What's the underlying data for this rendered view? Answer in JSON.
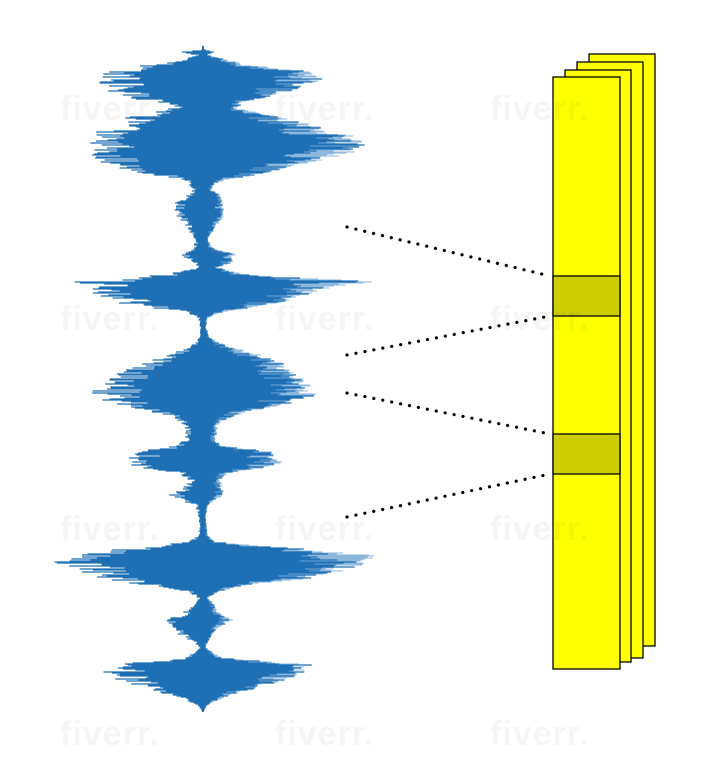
{
  "diagram": {
    "waveform": {
      "color": "#1f6fb4",
      "highlight_color": "#6fa6d6"
    },
    "frames": {
      "count": 4,
      "fill_color": "#ffff00",
      "window_color": "#cccc00",
      "stroke_color": "#000000"
    },
    "connectors": {
      "style": "dotted",
      "color": "#000000"
    },
    "watermark": {
      "text": "fiverr."
    }
  }
}
